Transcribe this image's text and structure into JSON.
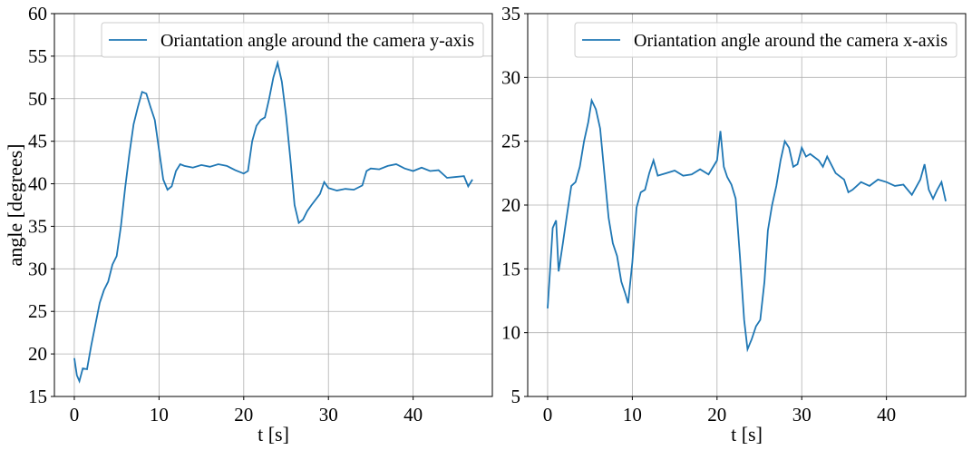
{
  "chart_data": [
    {
      "type": "line",
      "xlabel": "t [s]",
      "ylabel": "angle [degrees]",
      "x": [
        0,
        0.3,
        0.6,
        1,
        1.5,
        2,
        2.5,
        3,
        3.5,
        4,
        4.5,
        5,
        5.5,
        6,
        6.5,
        7,
        7.5,
        8,
        8.5,
        9,
        9.5,
        10,
        10.5,
        11,
        11.5,
        12,
        12.5,
        13,
        14,
        15,
        16,
        17,
        18,
        19,
        20,
        20.5,
        21,
        21.5,
        22,
        22.5,
        23,
        23.5,
        24,
        24.5,
        25,
        25.5,
        26,
        26.5,
        27,
        27.5,
        28,
        29,
        29.5,
        30,
        31,
        32,
        33,
        34,
        34.5,
        35,
        36,
        37,
        38,
        39,
        40,
        41,
        42,
        43,
        44,
        45,
        46,
        46.5,
        47
      ],
      "series": [
        {
          "name": "Oriantation angle around the camera y-axis",
          "color": "#1f77b4",
          "values": [
            19.5,
            17.5,
            16.8,
            18.3,
            18.2,
            21,
            23.5,
            26,
            27.5,
            28.5,
            30.5,
            31.5,
            35,
            39.5,
            43.5,
            47,
            49,
            50.8,
            50.6,
            49,
            47.5,
            44,
            40.5,
            39.3,
            39.7,
            41.5,
            42.3,
            42.1,
            41.9,
            42.2,
            42,
            42.3,
            42.1,
            41.6,
            41.2,
            41.5,
            45,
            46.8,
            47.5,
            47.8,
            50,
            52.5,
            54.2,
            52,
            48,
            43,
            37.5,
            35.4,
            35.8,
            36.8,
            37.5,
            38.8,
            40.2,
            39.5,
            39.2,
            39.4,
            39.3,
            39.8,
            41.5,
            41.8,
            41.7,
            42.1,
            42.3,
            41.8,
            41.5,
            41.9,
            41.5,
            41.6,
            40.7,
            40.8,
            40.9,
            39.7,
            40.5
          ]
        }
      ],
      "xlim": [
        -2.35,
        49.35
      ],
      "ylim": [
        15,
        60
      ],
      "xticks": [
        0,
        10,
        20,
        30,
        40
      ],
      "yticks": [
        15,
        20,
        25,
        30,
        35,
        40,
        45,
        50,
        55,
        60
      ],
      "grid": true,
      "legend": "upper right"
    },
    {
      "type": "line",
      "xlabel": "t [s]",
      "x": [
        0,
        0.3,
        0.6,
        1,
        1.3,
        1.8,
        2.3,
        2.8,
        3.3,
        3.8,
        4.3,
        4.8,
        5.2,
        5.7,
        6.2,
        6.7,
        7.2,
        7.7,
        8.2,
        8.7,
        9.2,
        9.5,
        10,
        10.5,
        11,
        11.5,
        12,
        12.5,
        13,
        14,
        15,
        16,
        17,
        18,
        19,
        20,
        20.4,
        20.8,
        21.2,
        21.7,
        22.2,
        22.7,
        23.2,
        23.6,
        24.1,
        24.6,
        25.1,
        25.6,
        26,
        26.5,
        27,
        27.5,
        28,
        28.5,
        29,
        29.5,
        30,
        30.5,
        31,
        32,
        32.5,
        33,
        34,
        35,
        35.5,
        36,
        37,
        38,
        39,
        40,
        41,
        42,
        43,
        44,
        44.5,
        45,
        45.5,
        46,
        46.5,
        47
      ],
      "series": [
        {
          "name": "Oriantation angle around the camera x-axis",
          "color": "#1f77b4",
          "values": [
            11.9,
            15,
            18.2,
            18.8,
            14.8,
            17,
            19.3,
            21.5,
            21.8,
            23,
            25,
            26.5,
            28.2,
            27.5,
            26,
            22.5,
            19,
            17,
            16,
            14,
            13,
            12.3,
            15.5,
            19.8,
            21,
            21.2,
            22.5,
            23.5,
            22.3,
            22.5,
            22.7,
            22.3,
            22.4,
            22.8,
            22.4,
            23.5,
            25.8,
            23,
            22.2,
            21.6,
            20.5,
            16,
            11,
            8.7,
            9.5,
            10.5,
            11,
            14,
            18,
            20,
            21.5,
            23.5,
            25,
            24.5,
            23,
            23.2,
            24.5,
            23.8,
            24,
            23.5,
            23,
            23.8,
            22.5,
            22,
            21,
            21.2,
            21.8,
            21.5,
            22,
            21.8,
            21.5,
            21.6,
            20.8,
            22,
            23.2,
            21.2,
            20.5,
            21.2,
            21.8,
            20.3
          ]
        }
      ],
      "xlim": [
        -2.35,
        49.35
      ],
      "ylim": [
        5,
        35
      ],
      "xticks": [
        0,
        10,
        20,
        30,
        40
      ],
      "yticks": [
        5,
        10,
        15,
        20,
        25,
        30,
        35
      ],
      "grid": true,
      "legend": "upper right"
    }
  ]
}
